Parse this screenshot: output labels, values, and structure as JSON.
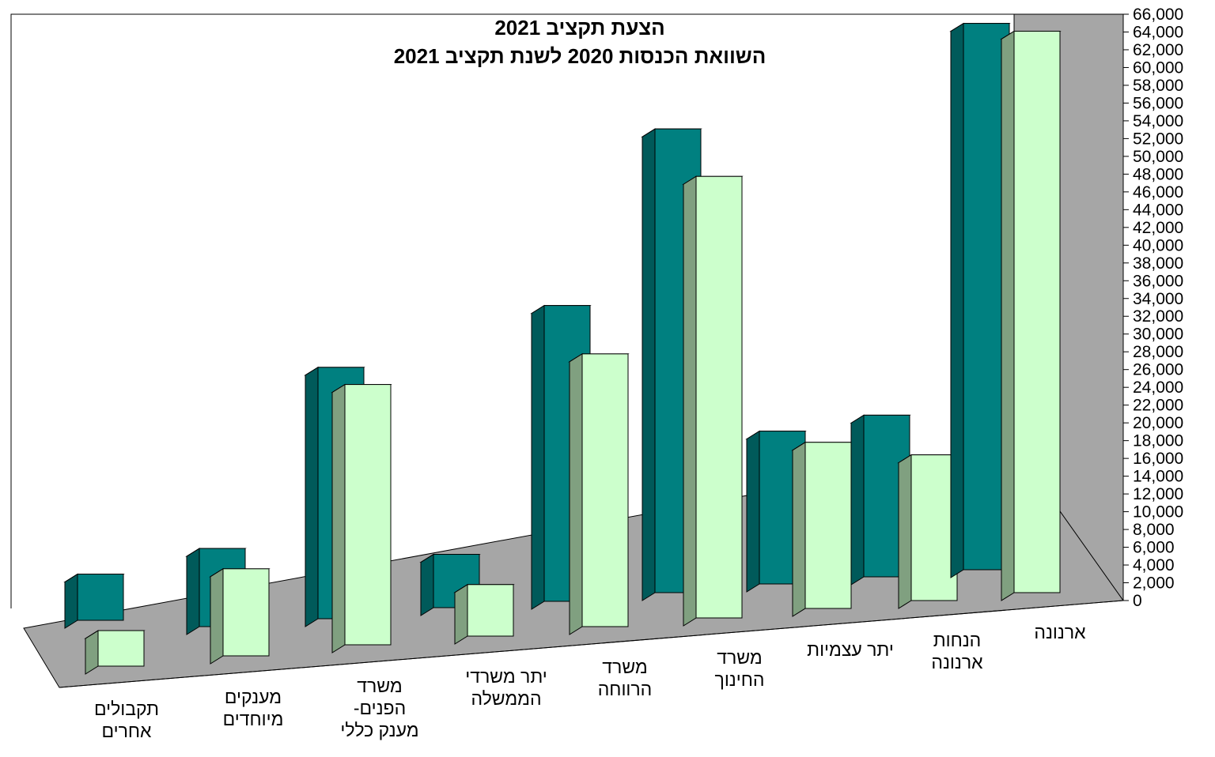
{
  "chart_data": {
    "type": "bar",
    "title": "הצעת תקציב 2021",
    "subtitle": "השוואת הכנסות 2020 לשנת תקציב  2021",
    "xlabel": "",
    "ylabel": "",
    "ylim": [
      0,
      66000
    ],
    "y_ticks": [
      "0",
      "2,000",
      "4,000",
      "6,000",
      "8,000",
      "10,000",
      "12,000",
      "14,000",
      "16,000",
      "18,000",
      "20,000",
      "22,000",
      "24,000",
      "26,000",
      "28,000",
      "30,000",
      "32,000",
      "34,000",
      "36,000",
      "38,000",
      "40,000",
      "42,000",
      "44,000",
      "46,000",
      "48,000",
      "50,000",
      "52,000",
      "54,000",
      "56,000",
      "58,000",
      "60,000",
      "62,000",
      "64,000",
      "66,000"
    ],
    "categories": [
      [
        "תקבולים",
        "אחרים"
      ],
      [
        "מענקים",
        "מיוחדים"
      ],
      [
        "משרד",
        "הפנים-",
        "מענק כללי"
      ],
      [
        "יתר משרדי",
        "הממשלה"
      ],
      [
        "משרד",
        "הרווחה"
      ],
      [
        "משרד",
        "החינוך"
      ],
      [
        "יתר עצמיות"
      ],
      [
        "הנחות",
        "ארנונה"
      ],
      [
        "ארנונה"
      ]
    ],
    "series": [
      {
        "values": [
          5200,
          8800,
          28300,
          6000,
          33300,
          52200,
          17200,
          18200,
          61500
        ],
        "color": "#008080"
      },
      {
        "values": [
          4000,
          9800,
          29300,
          5800,
          30700,
          49700,
          18700,
          16400,
          63200
        ],
        "color": "#ccffcc"
      }
    ],
    "grid": false,
    "legend": "none",
    "colors": {
      "wall": "#a6a6a6",
      "floor": "#a6a6a6",
      "dark_side": "#005a5a",
      "light_side": "#80a080"
    }
  }
}
